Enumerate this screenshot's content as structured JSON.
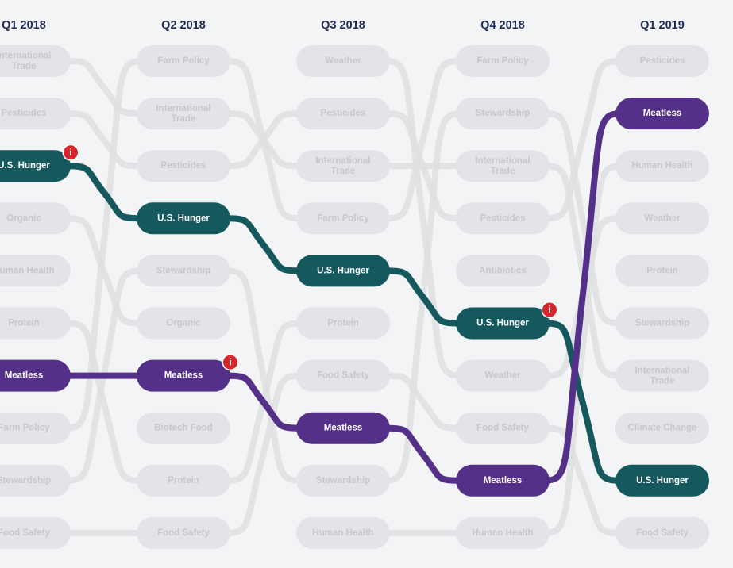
{
  "columns": [
    "Q1 2018",
    "Q2 2018",
    "Q3 2018",
    "Q4 2018",
    "Q1 2019"
  ],
  "columns_rankings": [
    [
      "International Trade",
      "Pesticides",
      "U.S. Hunger",
      "Organic",
      "Human Health",
      "Protein",
      "Meatless",
      "Farm Policy",
      "Stewardship",
      "Food Safety"
    ],
    [
      "Farm Policy",
      "International Trade",
      "Pesticides",
      "U.S. Hunger",
      "Stewardship",
      "Organic",
      "Meatless",
      "Biotech Food",
      "Protein",
      "Food Safety"
    ],
    [
      "Weather",
      "Pesticides",
      "International Trade",
      "Farm Policy",
      "U.S. Hunger",
      "Protein",
      "Food Safety",
      "Meatless",
      "Stewardship",
      "Human Health"
    ],
    [
      "Farm Policy",
      "Stewardship",
      "International Trade",
      "Pesticides",
      "Antibiotics",
      "U.S. Hunger",
      "Weather",
      "Food Safety",
      "Meatless",
      "Human Health"
    ],
    [
      "Pesticides",
      "Meatless",
      "Human Health",
      "Weather",
      "Protein",
      "Stewardship",
      "International Trade",
      "Climate Change",
      "U.S. Hunger",
      "Food Safety"
    ]
  ],
  "highlights": {
    "U.S. Hunger": "#15585e",
    "Meatless": "#553089"
  },
  "info_markers": [
    {
      "column": 0,
      "topic": "U.S. Hunger"
    },
    {
      "column": 1,
      "topic": "Meatless"
    },
    {
      "column": 3,
      "topic": "U.S. Hunger"
    }
  ],
  "info_symbol": "i",
  "colors": {
    "background": "#f3f4f6",
    "pill": "#e3e4e7",
    "line": "#dedfe2",
    "text_muted": "#c6c8cc",
    "header": "#1e2b55",
    "info": "#d7262b"
  }
}
